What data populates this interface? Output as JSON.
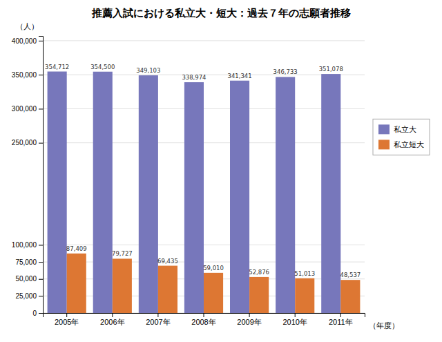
{
  "chart_data": {
    "type": "bar",
    "title": "推薦入試における私立大・短大：過去７年の志願者推移",
    "xlabel": "（年度）",
    "ylabel": "（人）",
    "categories": [
      "2005年",
      "2006年",
      "2007年",
      "2008年",
      "2009年",
      "2010年",
      "2011年"
    ],
    "series": [
      {
        "name": "私立大",
        "color": "#7777bb",
        "values": [
          354712,
          354500,
          349103,
          338974,
          341341,
          346733,
          351078
        ],
        "value_labels": [
          "354,712",
          "354,500",
          "349,103",
          "338,974",
          "341,341",
          "346,733",
          "351,078"
        ]
      },
      {
        "name": "私立短大",
        "color": "#dd7733",
        "values": [
          87409,
          79727,
          69435,
          59010,
          52876,
          51013,
          48537
        ],
        "value_labels": [
          "87,409",
          "79,727",
          "69,435",
          "59,010",
          "52,876",
          "51,013",
          "48,537"
        ]
      }
    ],
    "ylim": [
      0,
      407000
    ],
    "yticks": [
      0,
      {
        "value": 25000,
        "label": "25,000"
      },
      {
        "value": 50000,
        "label": "50,000"
      },
      {
        "value": 75000,
        "label": "75,000"
      },
      {
        "value": 100000,
        "label": "100,000"
      },
      {
        "value": 250000,
        "label": "250,000"
      },
      {
        "value": 300000,
        "label": "300,000"
      },
      {
        "value": 350000,
        "label": "350,000"
      },
      {
        "value": 400000,
        "label": "400,000"
      }
    ],
    "grid": true,
    "legend": "right",
    "data_labels": true
  }
}
